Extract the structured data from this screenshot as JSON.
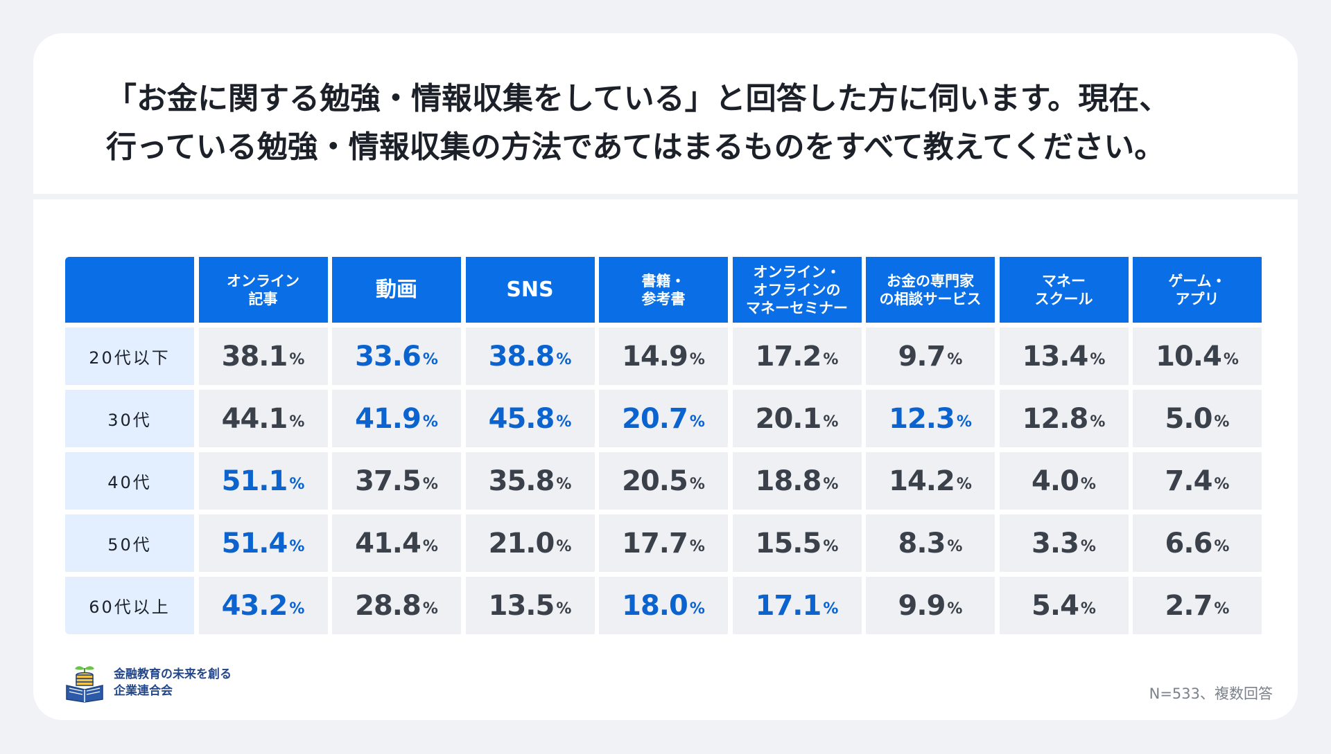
{
  "title": {
    "line1": "「お金に関する勉強・情報収集をしている」と回答した方に伺います。現在、",
    "line2": "行っている勉強・情報収集の方法であてはまるものをすべて教えてください。"
  },
  "footer": {
    "org_line1": "金融教育の未来を創る",
    "org_line2": "企業連合会",
    "note": "N=533、複数回答"
  },
  "colors": {
    "header_bg": "#0a6fe6",
    "highlight_text": "#0a63cf",
    "normal_text": "#3b414b",
    "row_label_bg": "#e3efff",
    "cell_bg": "#eef0f3"
  },
  "chart_data": {
    "type": "table",
    "unit": "%",
    "columns": [
      "オンライン\n記事",
      "動画",
      "SNS",
      "書籍・\n参考書",
      "オンライン・\nオフラインの\nマネーセミナー",
      "お金の専門家\nの相談サービス",
      "マネー\nスクール",
      "ゲーム・\nアプリ"
    ],
    "rows": [
      {
        "label": "20代以下",
        "values": [
          "38.1",
          "33.6",
          "38.8",
          "14.9",
          "17.2",
          "9.7",
          "13.4",
          "10.4"
        ],
        "highlight": [
          false,
          true,
          true,
          false,
          false,
          false,
          false,
          false
        ]
      },
      {
        "label": "30代",
        "values": [
          "44.1",
          "41.9",
          "45.8",
          "20.7",
          "20.1",
          "12.3",
          "12.8",
          "5.0"
        ],
        "highlight": [
          false,
          true,
          true,
          true,
          false,
          true,
          false,
          false
        ]
      },
      {
        "label": "40代",
        "values": [
          "51.1",
          "37.5",
          "35.8",
          "20.5",
          "18.8",
          "14.2",
          "4.0",
          "7.4"
        ],
        "highlight": [
          true,
          false,
          false,
          false,
          false,
          false,
          false,
          false
        ]
      },
      {
        "label": "50代",
        "values": [
          "51.4",
          "41.4",
          "21.0",
          "17.7",
          "15.5",
          "8.3",
          "3.3",
          "6.6"
        ],
        "highlight": [
          true,
          false,
          false,
          false,
          false,
          false,
          false,
          false
        ]
      },
      {
        "label": "60代以上",
        "values": [
          "43.2",
          "28.8",
          "13.5",
          "18.0",
          "17.1",
          "9.9",
          "5.4",
          "2.7"
        ],
        "highlight": [
          true,
          false,
          false,
          true,
          true,
          false,
          false,
          false
        ]
      }
    ]
  }
}
